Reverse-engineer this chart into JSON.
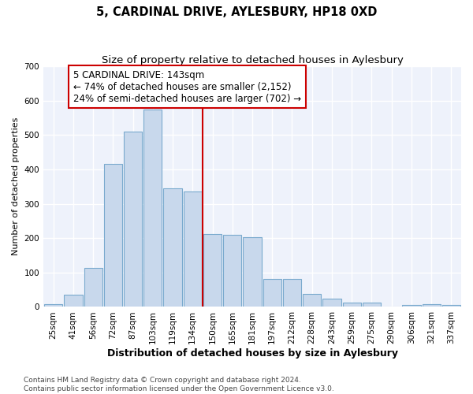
{
  "title": "5, CARDINAL DRIVE, AYLESBURY, HP18 0XD",
  "subtitle": "Size of property relative to detached houses in Aylesbury",
  "xlabel": "Distribution of detached houses by size in Aylesbury",
  "ylabel": "Number of detached properties",
  "categories": [
    "25sqm",
    "41sqm",
    "56sqm",
    "72sqm",
    "87sqm",
    "103sqm",
    "119sqm",
    "134sqm",
    "150sqm",
    "165sqm",
    "181sqm",
    "197sqm",
    "212sqm",
    "228sqm",
    "243sqm",
    "259sqm",
    "275sqm",
    "290sqm",
    "306sqm",
    "321sqm",
    "337sqm"
  ],
  "values": [
    8,
    35,
    113,
    415,
    510,
    575,
    345,
    335,
    212,
    210,
    203,
    82,
    82,
    38,
    25,
    13,
    13,
    0,
    5,
    8,
    5
  ],
  "bar_color": "#c8d8ec",
  "bar_edgecolor": "#7aaace",
  "vline_x": 7.5,
  "vline_color": "#cc0000",
  "annotation_text": "5 CARDINAL DRIVE: 143sqm\n← 74% of detached houses are smaller (2,152)\n24% of semi-detached houses are larger (702) →",
  "annotation_box_edgecolor": "#cc0000",
  "annotation_box_facecolor": "#ffffff",
  "ylim": [
    0,
    700
  ],
  "yticks": [
    0,
    100,
    200,
    300,
    400,
    500,
    600,
    700
  ],
  "background_color": "#eef2fb",
  "plot_bg_color": "#eef2fb",
  "grid_color": "#ffffff",
  "footer_line1": "Contains HM Land Registry data © Crown copyright and database right 2024.",
  "footer_line2": "Contains public sector information licensed under the Open Government Licence v3.0.",
  "title_fontsize": 10.5,
  "subtitle_fontsize": 9.5,
  "xlabel_fontsize": 9,
  "ylabel_fontsize": 8,
  "tick_fontsize": 7.5,
  "annotation_fontsize": 8.5,
  "footer_fontsize": 6.5
}
